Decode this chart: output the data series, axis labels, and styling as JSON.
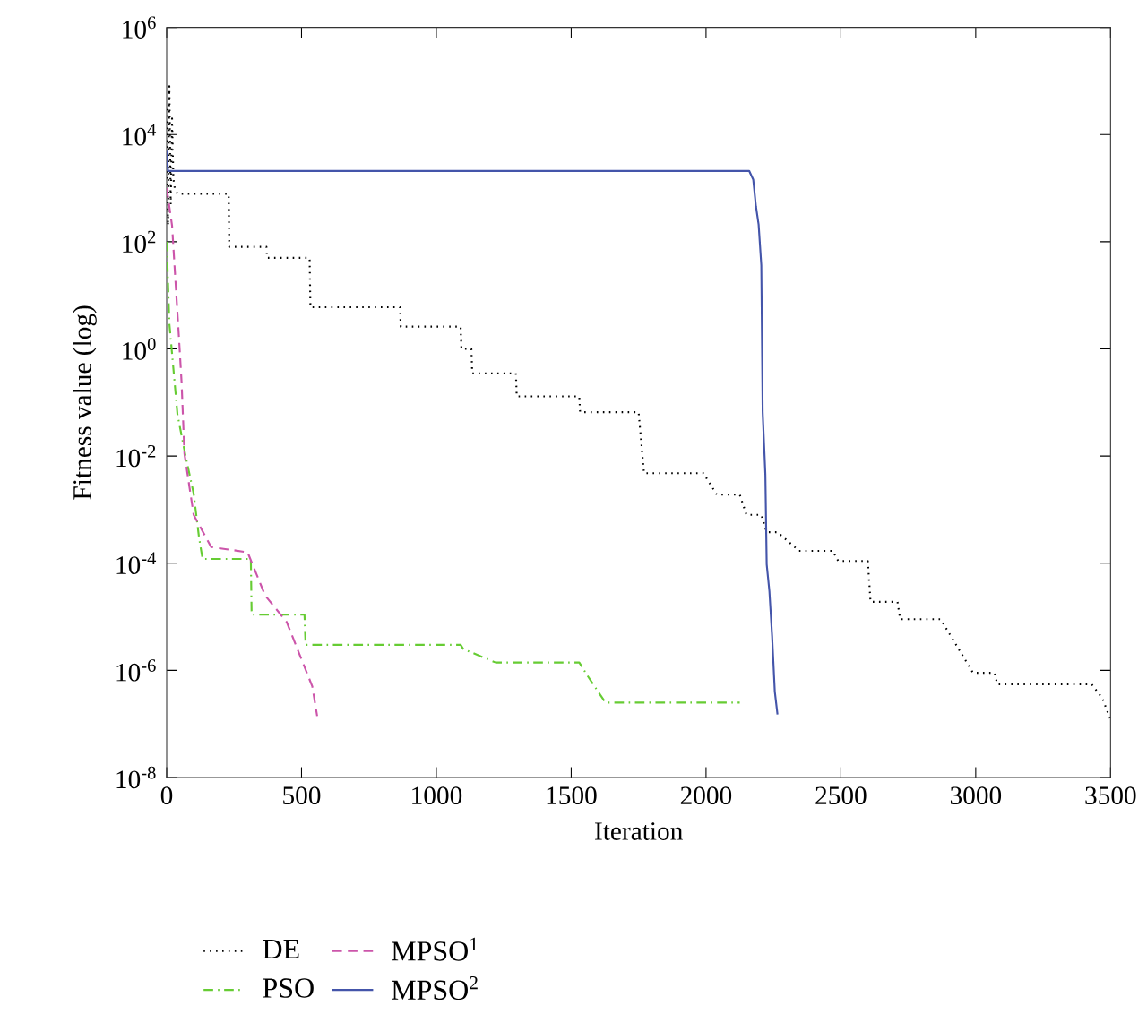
{
  "chart_data": {
    "type": "line",
    "xlabel": "Iteration",
    "ylabel": "Fitness value (log)",
    "log": "y",
    "grid": false,
    "legend": "bottom",
    "marker": "none",
    "xlim": [
      0,
      3500
    ],
    "xticks": [
      0,
      500,
      1000,
      1500,
      2000,
      2500,
      3000,
      3500
    ],
    "ylim": [
      1e-08,
      1000000.0
    ],
    "yticks": [
      {
        "value": 1e-08,
        "label": "10$^{-8}$"
      },
      {
        "value": 1e-06,
        "label": "10$^{-6}$"
      },
      {
        "value": 0.0001,
        "label": "10$^{-4}$"
      },
      {
        "value": 0.01,
        "label": "10$^{-2}$"
      },
      {
        "value": 1,
        "label": "10$^{0}$"
      },
      {
        "value": 100,
        "label": "10$^{2}$"
      },
      {
        "value": 10000,
        "label": "10$^{4}$"
      },
      {
        "value": 1000000.0,
        "label": "10$^{6}$"
      }
    ],
    "series": [
      {
        "name": "DE",
        "color": "#000000",
        "line_style": "dotted",
        "x": [
          0,
          5,
          10,
          15,
          20,
          25,
          30,
          40,
          230,
          232,
          370,
          372,
          530,
          533,
          865,
          868,
          1090,
          1093,
          1130,
          1133,
          1295,
          1298,
          1530,
          1533,
          1750,
          1770,
          1990,
          2040,
          2125,
          2150,
          2205,
          2225,
          2265,
          2345,
          2470,
          2490,
          2600,
          2610,
          2710,
          2720,
          2870,
          2990,
          3070,
          3080,
          3430,
          3470,
          3500
        ],
        "values": [
          30000,
          200,
          80000,
          500,
          20000,
          1500,
          1000,
          780,
          780,
          80,
          80,
          50,
          50,
          6,
          6,
          2.6,
          2.6,
          1,
          1,
          0.35,
          0.35,
          0.13,
          0.13,
          0.066,
          0.066,
          0.0048,
          0.0048,
          0.0019,
          0.0019,
          0.0008,
          0.0008,
          0.00038,
          0.00038,
          0.00017,
          0.00017,
          0.00011,
          0.00011,
          1.9e-05,
          1.9e-05,
          9e-06,
          9e-06,
          9e-07,
          9e-07,
          5.5e-07,
          5.5e-07,
          3e-07,
          1.2e-07
        ]
      },
      {
        "name": "PSO",
        "color": "#66cc33",
        "line_style": "dashdot",
        "x": [
          0,
          10,
          40,
          70,
          100,
          120,
          133,
          312,
          315,
          511,
          515,
          1090,
          1100,
          1220,
          1530,
          1560,
          1627,
          2125
        ],
        "values": [
          100,
          3,
          0.06,
          0.01,
          0.002,
          0.0003,
          0.00012,
          0.00012,
          1.1e-05,
          1.1e-05,
          3e-06,
          3e-06,
          2.5e-06,
          1.4e-06,
          1.4e-06,
          8e-07,
          2.5e-07,
          2.5e-07
        ]
      },
      {
        "name": "MPSO$^{1}$",
        "color": "#cc55aa",
        "line_style": "dashed",
        "x": [
          0,
          20,
          45,
          55,
          66,
          100,
          165,
          300,
          365,
          445,
          498,
          540,
          558
        ],
        "values": [
          1000,
          200,
          1.8,
          0.25,
          0.011,
          0.0008,
          0.0002,
          0.00016,
          2.5e-05,
          8e-06,
          1.7e-06,
          5e-07,
          1.4e-07
        ]
      },
      {
        "name": "MPSO$^{2}$",
        "color": "#4455aa",
        "line_style": "solid",
        "x": [
          0,
          5,
          10,
          2160,
          2175,
          2185,
          2195,
          2205,
          2210,
          2220,
          2225,
          2235,
          2245,
          2255,
          2265
        ],
        "values": [
          5000,
          2100,
          2100,
          2100,
          1450,
          460,
          210,
          36,
          0.066,
          0.0045,
          9.5e-05,
          3e-05,
          4.4e-06,
          4e-07,
          1.5e-07
        ]
      }
    ]
  }
}
